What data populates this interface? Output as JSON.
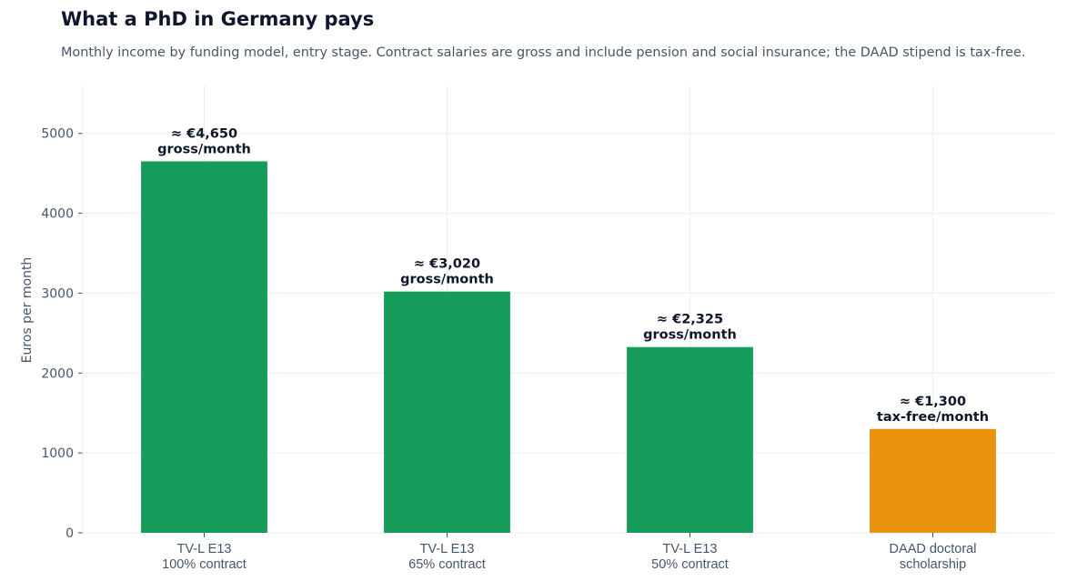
{
  "title": "What a PhD in Germany pays",
  "subtitle": "Monthly income by funding model, entry stage. Contract salaries are gross and include pension and social insurance; the DAAD stipend is tax-free.",
  "chart_data": {
    "type": "bar",
    "categories": [
      [
        "TV-L E13",
        "100% contract"
      ],
      [
        "TV-L E13",
        "65% contract"
      ],
      [
        "TV-L E13",
        "50% contract"
      ],
      [
        "DAAD doctoral",
        "scholarship"
      ]
    ],
    "values": [
      4650,
      3020,
      2325,
      1300
    ],
    "data_labels": [
      [
        "≈ €4,650",
        "gross/month"
      ],
      [
        "≈ €3,020",
        "gross/month"
      ],
      [
        "≈ €2,325",
        "gross/month"
      ],
      [
        "≈ €1,300",
        "tax-free/month"
      ]
    ],
    "colors": [
      "#169c5a",
      "#169c5a",
      "#169c5a",
      "#e8920e"
    ],
    "ylabel": "Euros per month",
    "xlabel": "",
    "ylim": [
      0,
      5600
    ],
    "yticks": [
      0,
      1000,
      2000,
      3000,
      4000,
      5000
    ],
    "grid": true,
    "legend": "none"
  }
}
